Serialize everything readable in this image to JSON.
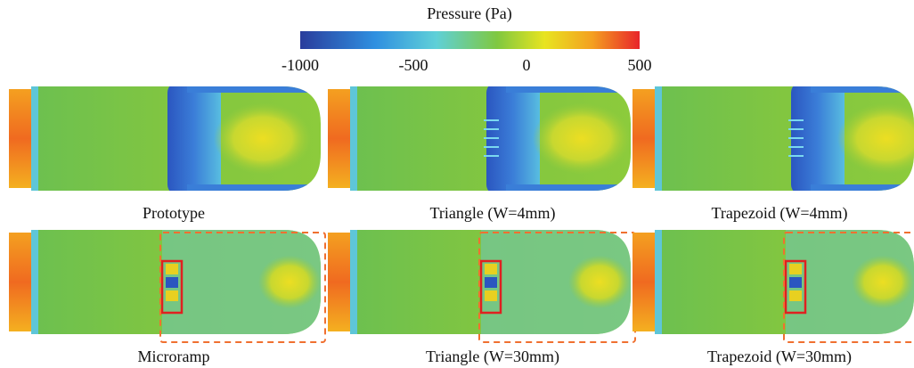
{
  "colorbar": {
    "title": "Pressure  (Pa)",
    "lim": [
      -1000,
      500
    ],
    "ticks": [
      -1000,
      -500,
      0,
      500
    ]
  },
  "panels": [
    {
      "label": "Prototype"
    },
    {
      "label": "Triangle (W=4mm)"
    },
    {
      "label": "Trapezoid (W=4mm)"
    },
    {
      "label": "Microramp"
    },
    {
      "label": "Triangle (W=30mm)"
    },
    {
      "label": "Trapezoid (W=30mm)"
    }
  ]
}
